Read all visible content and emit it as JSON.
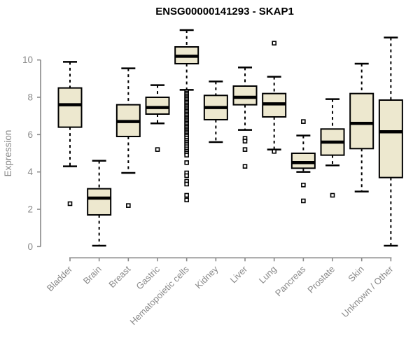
{
  "chart_data": {
    "type": "boxplot",
    "title": "ENSG00000141293 - SKAP1",
    "xlabel": "",
    "ylabel": "Expression",
    "grid": false,
    "legend": null,
    "yticks": [
      0,
      2,
      4,
      6,
      8,
      10
    ],
    "ylim": [
      -0.4,
      11.8
    ],
    "categories": [
      "Bladder",
      "Brain",
      "Breast",
      "Gastric",
      "Hematopoietic cells",
      "Kidney",
      "Liver",
      "Lung",
      "Pancreas",
      "Prostate",
      "Skin",
      "Unknown / Other"
    ],
    "series": [
      {
        "category": "Bladder",
        "whisker_low": 4.3,
        "q1": 6.4,
        "median": 7.6,
        "q3": 8.5,
        "whisker_high": 9.9,
        "outliers": [
          2.3
        ]
      },
      {
        "category": "Brain",
        "whisker_low": 0.05,
        "q1": 1.7,
        "median": 2.6,
        "q3": 3.1,
        "whisker_high": 4.6,
        "outliers": []
      },
      {
        "category": "Breast",
        "whisker_low": 3.95,
        "q1": 5.9,
        "median": 6.7,
        "q3": 7.6,
        "whisker_high": 9.55,
        "outliers": [
          2.2
        ]
      },
      {
        "category": "Gastric",
        "whisker_low": 6.6,
        "q1": 7.1,
        "median": 7.45,
        "q3": 8.0,
        "whisker_high": 8.65,
        "outliers": [
          5.2
        ]
      },
      {
        "category": "Hematopoietic cells",
        "whisker_low": 8.4,
        "q1": 9.8,
        "median": 10.2,
        "q3": 10.7,
        "whisker_high": 11.6,
        "outliers": [
          8.3,
          8.22,
          8.14,
          8.06,
          7.98,
          7.9,
          7.82,
          7.74,
          7.66,
          7.58,
          7.5,
          7.42,
          7.34,
          7.26,
          7.18,
          7.1,
          7.02,
          6.94,
          6.86,
          6.78,
          6.7,
          6.62,
          6.54,
          6.46,
          6.38,
          6.3,
          6.22,
          6.14,
          6.06,
          5.98,
          5.9,
          5.8,
          5.7,
          5.6,
          5.5,
          5.4,
          5.3,
          5.2,
          5.1,
          5.0,
          4.9,
          4.5,
          3.95,
          3.8,
          3.5,
          3.35,
          2.75,
          2.5
        ]
      },
      {
        "category": "Kidney",
        "whisker_low": 5.6,
        "q1": 6.8,
        "median": 7.45,
        "q3": 8.1,
        "whisker_high": 8.85,
        "outliers": []
      },
      {
        "category": "Liver",
        "whisker_low": 6.25,
        "q1": 7.6,
        "median": 8.0,
        "q3": 8.6,
        "whisker_high": 9.6,
        "outliers": [
          5.8,
          5.65,
          5.2,
          4.3
        ]
      },
      {
        "category": "Lung",
        "whisker_low": 5.2,
        "q1": 6.95,
        "median": 7.65,
        "q3": 8.2,
        "whisker_high": 9.1,
        "outliers": [
          10.9,
          5.1
        ]
      },
      {
        "category": "Pancreas",
        "whisker_low": 4.0,
        "q1": 4.2,
        "median": 4.5,
        "q3": 5.0,
        "whisker_high": 5.95,
        "outliers": [
          6.7,
          3.3,
          2.45
        ]
      },
      {
        "category": "Prostate",
        "whisker_low": 4.35,
        "q1": 4.9,
        "median": 5.6,
        "q3": 6.3,
        "whisker_high": 7.9,
        "outliers": [
          2.75
        ]
      },
      {
        "category": "Skin",
        "whisker_low": 2.95,
        "q1": 5.25,
        "median": 6.6,
        "q3": 8.2,
        "whisker_high": 9.8,
        "outliers": []
      },
      {
        "category": "Unknown / Other",
        "whisker_low": 0.05,
        "q1": 3.7,
        "median": 6.15,
        "q3": 7.85,
        "whisker_high": 11.2,
        "outliers": []
      }
    ],
    "colors": {
      "box_fill": "#EDE8CF",
      "box_stroke": "#000000",
      "median": "#000000",
      "whisker": "#000000",
      "outlier_fill": "#FFFFFF",
      "outlier_stroke": "#000000",
      "axis": "#898989",
      "tick_label": "#898989",
      "axis_title": "#898989",
      "title": "#000000",
      "background": "#FFFFFF"
    }
  }
}
